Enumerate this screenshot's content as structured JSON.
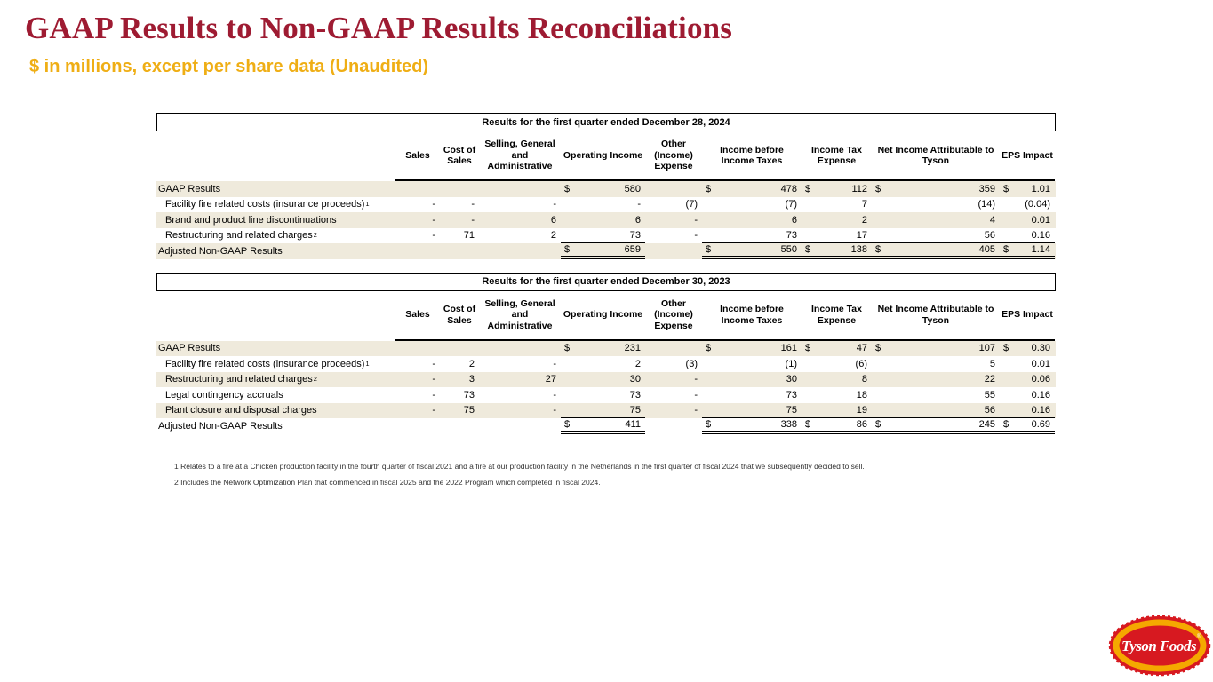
{
  "page": {
    "title": "GAAP Results to Non-GAAP Results Reconciliations",
    "subtitle": "$ in millions, except per share data (Unaudited)"
  },
  "columns": [
    "Sales",
    "Cost of Sales",
    "Selling, General and Administrative",
    "Operating Income",
    "Other (Income) Expense",
    "Income before Income Taxes",
    "Income Tax Expense",
    "Net Income Attributable to Tyson",
    "EPS Impact"
  ],
  "tables": [
    {
      "title": "Results for the first quarter ended December 28, 2024",
      "rows": [
        {
          "label": "GAAP Results",
          "sup": "",
          "indent": false,
          "shaded": true,
          "rule": "",
          "cells": [
            "",
            "",
            "",
            "$|580",
            "",
            "$|478",
            "$|112",
            "$|359",
            "$|1.01"
          ]
        },
        {
          "label": "Facility fire related costs (insurance proceeds)",
          "sup": "1",
          "indent": true,
          "shaded": false,
          "rule": "",
          "cells": [
            "-",
            "-",
            "-",
            "-",
            "(7)",
            "(7)",
            "7",
            "(14)",
            "(0.04)"
          ]
        },
        {
          "label": "Brand and product line discontinuations",
          "sup": "",
          "indent": true,
          "shaded": true,
          "rule": "",
          "cells": [
            "-",
            "-",
            "6",
            "6",
            "-",
            "6",
            "2",
            "4",
            "0.01"
          ]
        },
        {
          "label": "Restructuring and related charges",
          "sup": "2",
          "indent": true,
          "shaded": false,
          "rule": "single",
          "cells": [
            "-",
            "71",
            "2",
            "73",
            "-",
            "73",
            "17",
            "56",
            "0.16"
          ]
        },
        {
          "label": "Adjusted Non-GAAP Results",
          "sup": "",
          "indent": false,
          "shaded": true,
          "rule": "double",
          "cells": [
            "",
            "",
            "",
            "$|659",
            "",
            "$|550",
            "$|138",
            "$|405",
            "$|1.14"
          ]
        }
      ]
    },
    {
      "title": "Results for the first quarter ended December 30, 2023",
      "rows": [
        {
          "label": "GAAP Results",
          "sup": "",
          "indent": false,
          "shaded": true,
          "rule": "",
          "cells": [
            "",
            "",
            "",
            "$|231",
            "",
            "$|161",
            "$|47",
            "$|107",
            "$|0.30"
          ]
        },
        {
          "label": "Facility fire related costs (insurance proceeds)",
          "sup": "1",
          "indent": true,
          "shaded": false,
          "rule": "",
          "cells": [
            "-",
            "2",
            "-",
            "2",
            "(3)",
            "(1)",
            "(6)",
            "5",
            "0.01"
          ]
        },
        {
          "label": "Restructuring and related charges",
          "sup": "2",
          "indent": true,
          "shaded": true,
          "rule": "",
          "cells": [
            "-",
            "3",
            "27",
            "30",
            "-",
            "30",
            "8",
            "22",
            "0.06"
          ]
        },
        {
          "label": "Legal contingency accruals",
          "sup": "",
          "indent": true,
          "shaded": false,
          "rule": "",
          "cells": [
            "-",
            "73",
            "-",
            "73",
            "-",
            "73",
            "18",
            "55",
            "0.16"
          ]
        },
        {
          "label": "Plant closure and disposal charges",
          "sup": "",
          "indent": true,
          "shaded": true,
          "rule": "single",
          "cells": [
            "-",
            "75",
            "-",
            "75",
            "-",
            "75",
            "19",
            "56",
            "0.16"
          ]
        },
        {
          "label": "Adjusted Non-GAAP Results",
          "sup": "",
          "indent": false,
          "shaded": false,
          "rule": "double",
          "cells": [
            "",
            "",
            "",
            "$|411",
            "",
            "$|338",
            "$|86",
            "$|245",
            "$|0.69"
          ]
        }
      ]
    }
  ],
  "footnotes": [
    "1 Relates to a fire at a Chicken production facility in the fourth quarter of fiscal 2021 and a fire at our production facility in the Netherlands in the first quarter of fiscal 2024 that we subsequently decided to sell.",
    "2 Includes the Network Optimization Plan that commenced in fiscal 2025 and the 2022 Program which completed in fiscal 2024."
  ],
  "logo": {
    "text": "Tyson Foods",
    "registered": "®"
  },
  "colors": {
    "title_maroon": "#9E1B32",
    "subtitle_gold": "#EFAE15",
    "row_shade": "#EFEADC",
    "logo_red": "#D71920",
    "logo_gold": "#F5A800"
  }
}
